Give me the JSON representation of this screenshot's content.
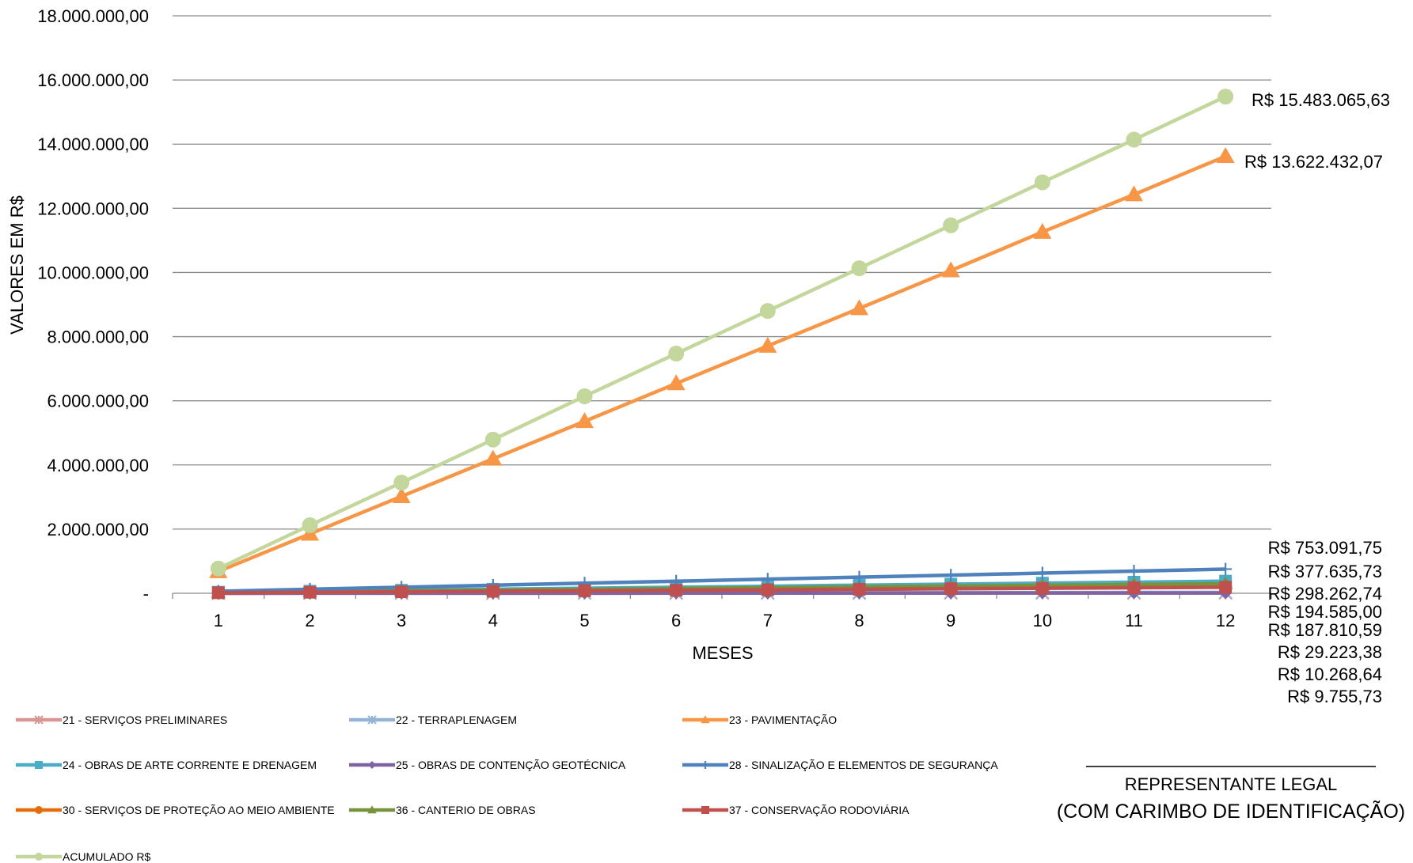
{
  "chart_data": {
    "type": "line",
    "x": [
      1,
      2,
      3,
      4,
      5,
      6,
      7,
      8,
      9,
      10,
      11,
      12
    ],
    "xlabel": "MESES",
    "ylabel": "VALORES EM R$",
    "ylim": [
      0,
      18000000
    ],
    "ytick_values": [
      0,
      2000000,
      4000000,
      6000000,
      8000000,
      10000000,
      12000000,
      14000000,
      16000000,
      18000000
    ],
    "ytick_labels": [
      "-",
      "2.000.000,00",
      "4.000.000,00",
      "6.000.000,00",
      "8.000.000,00",
      "10.000.000,00",
      "12.000.000,00",
      "14.000.000,00",
      "16.000.000,00",
      "18.000.000,00"
    ],
    "grid": true,
    "legend_position": "bottom",
    "series": [
      {
        "name": "21 - SERVIÇOS PRELIMINARES",
        "color": "#d99694",
        "marker": "star",
        "values": [
          813,
          1626,
          2439,
          3252,
          4065,
          4878,
          5691,
          6504,
          7317,
          8130,
          8943,
          9756
        ]
      },
      {
        "name": "22 - TERRAPLENAGEM",
        "color": "#95b3d7",
        "marker": "star",
        "values": [
          2435,
          4871,
          7306,
          9741,
          12177,
          14612,
          17047,
          19482,
          21918,
          24353,
          26788,
          29223
        ]
      },
      {
        "name": "23 - PAVIMENTAÇÃO",
        "color": "#f79646",
        "marker": "triangle",
        "values": [
          680000,
          1850000,
          3020000,
          4190000,
          5360000,
          6540000,
          7710000,
          8880000,
          10060000,
          11260000,
          12430000,
          13622432
        ]
      },
      {
        "name": "24 - OBRAS DE ARTE CORRENTE E DRENAGEM",
        "color": "#4bacc6",
        "marker": "square",
        "values": [
          31470,
          62939,
          94409,
          125879,
          157348,
          188818,
          220287,
          251757,
          283227,
          314696,
          346166,
          377636
        ]
      },
      {
        "name": "25 - OBRAS DE CONTENÇÃO GEOTÉCNICA",
        "color": "#8064a2",
        "marker": "diamond",
        "values": [
          856,
          1711,
          2567,
          3423,
          4279,
          5134,
          5990,
          6846,
          7702,
          8557,
          9413,
          10269
        ]
      },
      {
        "name": "28 - SINALIZAÇÃO E ELEMENTOS DE SEGURANÇA",
        "color": "#4f81bd",
        "marker": "plus",
        "values": [
          62758,
          125515,
          188273,
          251031,
          313788,
          376546,
          439304,
          502061,
          564819,
          627576,
          690334,
          753092
        ]
      },
      {
        "name": "30 - SERVIÇOS DE PROTEÇÃO AO MEIO AMBIENTE",
        "color": "#e46c0a",
        "marker": "circle",
        "values": [
          16215,
          32431,
          48646,
          64862,
          81077,
          97293,
          113508,
          129723,
          145939,
          162154,
          178370,
          194585
        ]
      },
      {
        "name": "36 - CANTERIO DE OBRAS",
        "color": "#77933c",
        "marker": "triangle",
        "values": [
          24855,
          49711,
          74566,
          99421,
          124276,
          149131,
          173986,
          198842,
          223697,
          248552,
          273407,
          298263
        ]
      },
      {
        "name": "37 - CONSERVAÇÃO RODOVIÁRIA",
        "color": "#c0504d",
        "marker": "square",
        "values": [
          15651,
          31302,
          46953,
          62604,
          78254,
          93905,
          109556,
          125207,
          140858,
          156509,
          172160,
          187811
        ]
      },
      {
        "name": "ACUMULADO  R$",
        "color": "#c3d69b",
        "marker": "circle",
        "values": [
          770000,
          2120000,
          3450000,
          4790000,
          6140000,
          7470000,
          8800000,
          10130000,
          11470000,
          12810000,
          14140000,
          15483066
        ]
      }
    ],
    "end_labels": [
      "R$ 15.483.065,63",
      "R$ 13.622.432,07",
      "R$ 753.091,75",
      "R$ 377.635,73",
      "R$ 298.262,74",
      "R$ 194.585,00",
      "R$ 187.810,59",
      "R$ 29.223,38",
      "R$ 10.268,64",
      "R$ 9.755,73"
    ]
  },
  "signature": {
    "title": "REPRESENTANTE  LEGAL",
    "subtitle": "(COM CARIMBO DE IDENTIFICAÇÃO)"
  }
}
